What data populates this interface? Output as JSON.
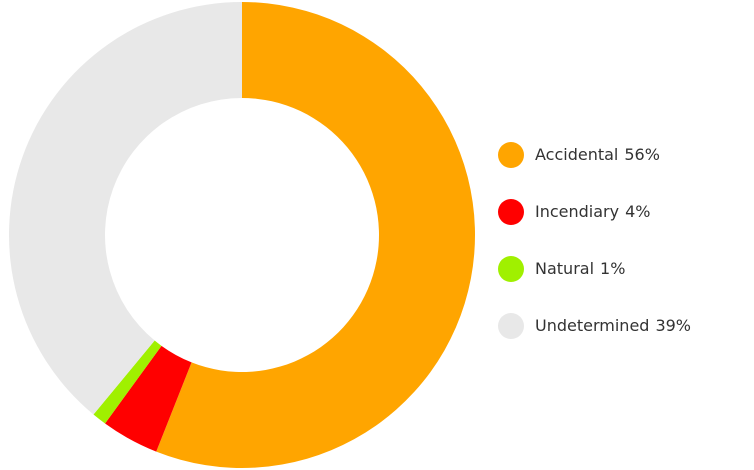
{
  "chart_data": {
    "type": "donut",
    "categories": [
      "Accidental",
      "Incendiary",
      "Natural",
      "Undetermined"
    ],
    "values": [
      56,
      4,
      1,
      39
    ],
    "value_labels": [
      "56%",
      "4%",
      "1%",
      "39%"
    ],
    "colors": [
      "#FFA500",
      "#FF0000",
      "#A0F000",
      "#E8E8E8"
    ],
    "legend": "right"
  }
}
